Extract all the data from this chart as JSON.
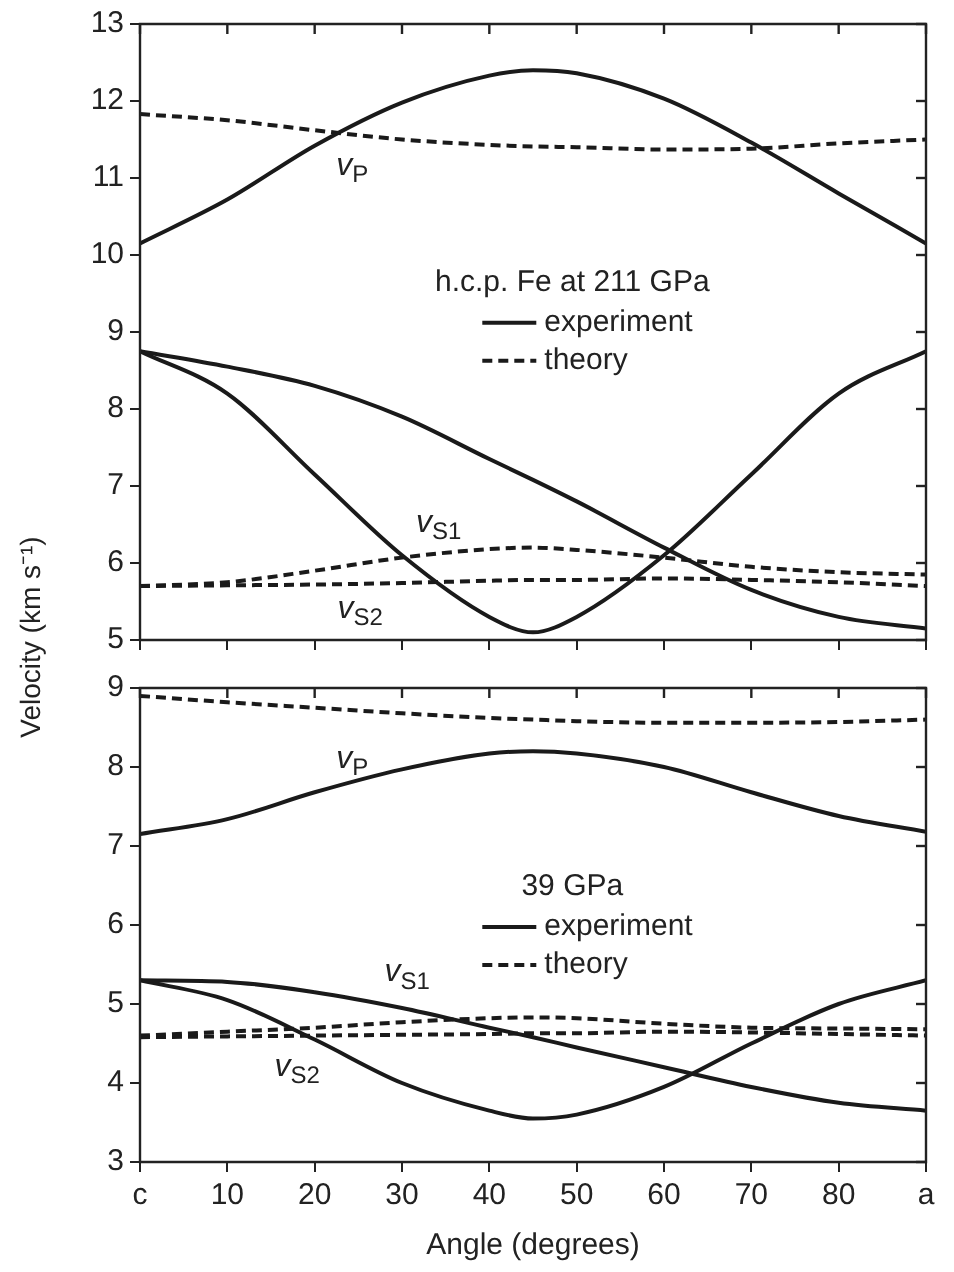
{
  "chart_data": [
    {
      "type": "line",
      "ylabel": "Velocity (km s⁻¹)",
      "legend_title": "h.c.p. Fe at 211 GPa",
      "legend": "center",
      "tick_labels": "y",
      "grid": false,
      "x": [
        0,
        10,
        20,
        30,
        40,
        45,
        50,
        60,
        70,
        80,
        90
      ],
      "xlim": [
        0,
        90
      ],
      "xticks": [
        0,
        10,
        20,
        30,
        40,
        50,
        60,
        70,
        80,
        90
      ],
      "ylim": [
        5,
        13
      ],
      "yticks": [
        5,
        6,
        7,
        8,
        9,
        10,
        11,
        12,
        13
      ],
      "series": [
        {
          "name": "experiment",
          "color": "#1a1a1a",
          "line_style": "solid",
          "values": [
            10.15,
            10.72,
            11.42,
            11.98,
            12.33,
            12.4,
            12.36,
            12.03,
            11.46,
            10.8,
            10.15
          ]
        },
        {
          "name": "theory",
          "color": "#1a1a1a",
          "line_style": "dashed",
          "values": [
            11.83,
            11.75,
            11.62,
            11.5,
            11.43,
            11.41,
            11.4,
            11.37,
            11.38,
            11.45,
            11.5
          ]
        },
        {
          "color": "#1a1a1a",
          "line_style": "solid",
          "values": [
            8.75,
            8.55,
            8.3,
            7.9,
            7.35,
            7.08,
            6.8,
            6.2,
            5.65,
            5.3,
            5.15
          ]
        },
        {
          "color": "#1a1a1a",
          "line_style": "solid",
          "values": [
            8.75,
            8.2,
            7.15,
            6.1,
            5.3,
            5.1,
            5.3,
            6.1,
            7.15,
            8.2,
            8.75
          ]
        },
        {
          "color": "#1a1a1a",
          "line_style": "dashed",
          "values": [
            5.7,
            5.75,
            5.9,
            6.07,
            6.18,
            6.2,
            6.17,
            6.07,
            5.95,
            5.88,
            5.85
          ]
        },
        {
          "color": "#1a1a1a",
          "line_style": "dashed",
          "values": [
            5.7,
            5.71,
            5.72,
            5.74,
            5.77,
            5.78,
            5.78,
            5.8,
            5.78,
            5.75,
            5.7
          ]
        }
      ],
      "annotations": [
        "v$_{P}$",
        "v$_{S1}$",
        "v$_{S2}$"
      ]
    },
    {
      "type": "line",
      "xlabel": "Angle (degrees)",
      "legend_title": "39 GPa",
      "legend": "center",
      "grid": false,
      "x": [
        0,
        10,
        20,
        30,
        40,
        45,
        50,
        60,
        70,
        80,
        90
      ],
      "xlim": [
        0,
        90
      ],
      "xticks": [
        {
          "value": 0,
          "label": "c"
        },
        10,
        20,
        30,
        40,
        50,
        60,
        70,
        80,
        {
          "value": 90,
          "label": "a"
        }
      ],
      "ylim": [
        3,
        9
      ],
      "yticks": [
        3,
        4,
        5,
        6,
        7,
        8,
        9
      ],
      "series": [
        {
          "name": "experiment",
          "color": "#1a1a1a",
          "line_style": "solid",
          "values": [
            7.15,
            7.34,
            7.68,
            7.97,
            8.17,
            8.2,
            8.17,
            8.0,
            7.68,
            7.38,
            7.18
          ]
        },
        {
          "name": "theory",
          "color": "#1a1a1a",
          "line_style": "dashed",
          "values": [
            8.9,
            8.82,
            8.75,
            8.68,
            8.62,
            8.6,
            8.58,
            8.56,
            8.56,
            8.57,
            8.6
          ]
        },
        {
          "color": "#1a1a1a",
          "line_style": "solid",
          "values": [
            5.3,
            5.28,
            5.15,
            4.95,
            4.7,
            4.58,
            4.45,
            4.2,
            3.95,
            3.75,
            3.65
          ]
        },
        {
          "color": "#1a1a1a",
          "line_style": "solid",
          "values": [
            5.3,
            5.05,
            4.55,
            4.0,
            3.65,
            3.55,
            3.6,
            3.95,
            4.5,
            5.0,
            5.3
          ]
        },
        {
          "color": "#1a1a1a",
          "line_style": "dashed",
          "values": [
            4.6,
            4.65,
            4.7,
            4.77,
            4.82,
            4.83,
            4.82,
            4.75,
            4.7,
            4.69,
            4.68
          ]
        },
        {
          "color": "#1a1a1a",
          "line_style": "dashed",
          "values": [
            4.58,
            4.59,
            4.6,
            4.61,
            4.62,
            4.63,
            4.63,
            4.65,
            4.64,
            4.62,
            4.6
          ]
        }
      ],
      "annotations": [
        "v$_{P}$",
        "v$_{S1}$",
        "v$_{S2}$"
      ]
    }
  ]
}
